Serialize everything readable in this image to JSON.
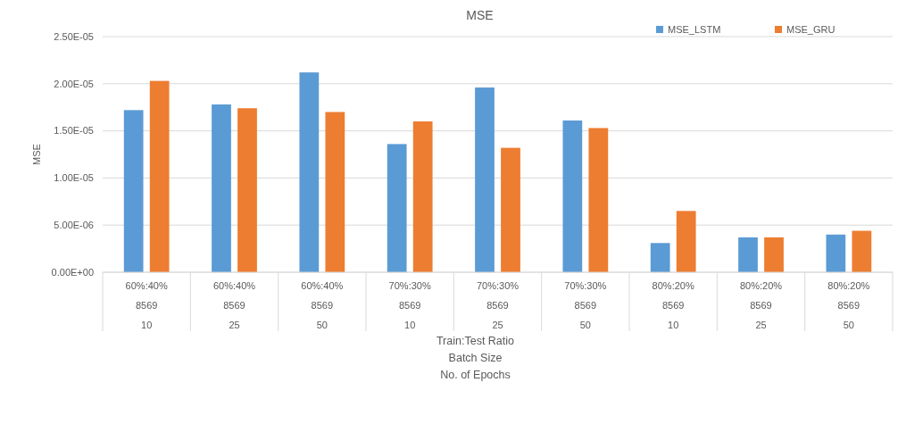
{
  "chart_data": {
    "type": "bar",
    "title": "MSE",
    "xlabel": "Train:Test Ratio\nBatch Size\nNo. of Epochs",
    "ylabel": "MSE",
    "categories": [
      "60%:40%\n8569\n10",
      "60%:40%\n8569\n25",
      "60%:40%\n8569\n50",
      "70%:30%\n8569\n10",
      "70%:30%\n8569\n25",
      "70%:30%\n8569\n50",
      "80%:20%\n8569\n10",
      "80%:20%\n8569\n25",
      "80%:20%\n8569\n50"
    ],
    "series": [
      {
        "name": "MSE_LSTM",
        "color": "#5b9bd5",
        "values": [
          1.72e-05,
          1.78e-05,
          2.12e-05,
          1.36e-05,
          1.96e-05,
          1.61e-05,
          3.1e-06,
          3.7e-06,
          4e-06
        ]
      },
      {
        "name": "MSE_GRU",
        "color": "#ed7d31",
        "values": [
          2.03e-05,
          1.74e-05,
          1.7e-05,
          1.6e-05,
          1.32e-05,
          1.53e-05,
          6.5e-06,
          3.7e-06,
          4.4e-06
        ]
      }
    ],
    "ylim": [
      0,
      2.5e-05
    ],
    "yticks": [
      {
        "value": 0,
        "label": "0.00E+00"
      },
      {
        "value": 5e-06,
        "label": "5.00E-06"
      },
      {
        "value": 1e-05,
        "label": "1.00E-05"
      },
      {
        "value": 1.5e-05,
        "label": "1.50E-05"
      },
      {
        "value": 2e-05,
        "label": "2.00E-05"
      },
      {
        "value": 2.5e-05,
        "label": "2.50E-05"
      }
    ],
    "grid": "y",
    "legend": "top right"
  }
}
